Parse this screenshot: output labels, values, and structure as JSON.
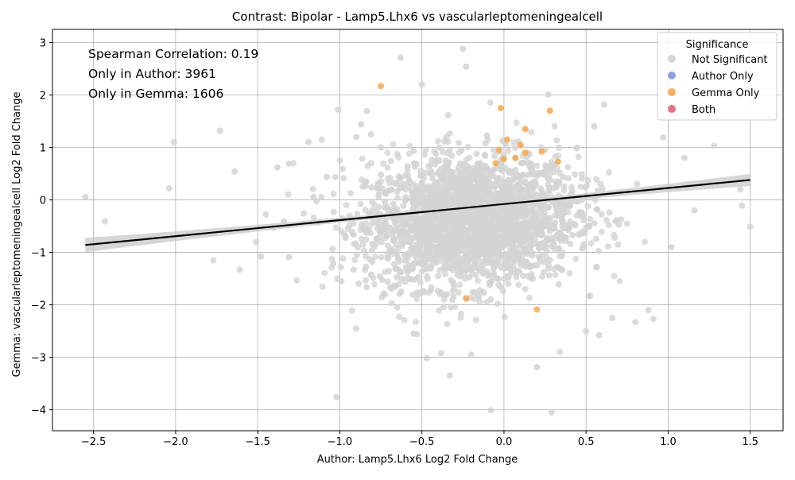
{
  "chart_data": {
    "type": "scatter",
    "title": "Contrast: Bipolar - Lamp5.Lhx6 vs vascularleptomeningealcell",
    "xlabel": "Author: Lamp5.Lhx6 Log2 Fold Change",
    "ylabel": "Gemma: vascularleptomeningealcell Log2 Fold Change",
    "xlim": [
      -2.75,
      1.7
    ],
    "ylim": [
      -4.4,
      3.25
    ],
    "x_ticks": [
      -2.5,
      -2.0,
      -1.5,
      -1.0,
      -0.5,
      0.0,
      0.5,
      1.0,
      1.5
    ],
    "x_tick_labels": [
      "−2.5",
      "−2.0",
      "−1.5",
      "−1.0",
      "−0.5",
      "0.0",
      "0.5",
      "1.0",
      "1.5"
    ],
    "y_ticks": [
      -4,
      -3,
      -2,
      -1,
      0,
      1,
      2,
      3
    ],
    "y_tick_labels": [
      "−4",
      "−3",
      "−2",
      "−1",
      "0",
      "1",
      "2",
      "3"
    ],
    "grid": true,
    "annotations": [
      "Spearman Correlation: 0.19",
      "Only in Author: 3961",
      "Only in Gemma: 1606"
    ],
    "legend": {
      "title": "Significance",
      "position": "top-right",
      "entries": [
        {
          "name": "Not Significant",
          "color": "#d3d3d3"
        },
        {
          "name": "Author Only",
          "color": "#7f97dc"
        },
        {
          "name": "Gemma Only",
          "color": "#f5a94e"
        },
        {
          "name": "Both",
          "color": "#e06377"
        }
      ]
    },
    "regression_line": {
      "x": [
        -2.55,
        1.5
      ],
      "y": [
        -0.86,
        0.38
      ],
      "color": "#000000",
      "band_color": "#c8c8c8"
    },
    "series": [
      {
        "name": "Not Significant",
        "color": "#d3d3d3",
        "points": [
          [
            -2.55,
            0.06
          ],
          [
            -2.43,
            -0.41
          ],
          [
            -2.01,
            1.1
          ],
          [
            -2.04,
            0.22
          ],
          [
            -1.77,
            -1.15
          ],
          [
            -1.73,
            1.32
          ],
          [
            -1.64,
            0.54
          ],
          [
            -1.61,
            -1.33
          ],
          [
            -1.51,
            -0.8
          ],
          [
            -1.48,
            -1.08
          ],
          [
            -1.45,
            -0.28
          ],
          [
            -1.38,
            0.62
          ],
          [
            -1.34,
            -0.41
          ],
          [
            -1.31,
            -1.09
          ],
          [
            -1.31,
            0.69
          ],
          [
            -1.22,
            -0.26
          ],
          [
            -1.19,
            1.1
          ],
          [
            -1.16,
            0.06
          ],
          [
            -1.11,
            1.15
          ],
          [
            -1.08,
            0.44
          ],
          [
            -1.04,
            -1.21
          ],
          [
            -1.02,
            -3.76
          ],
          [
            -1.01,
            1.72
          ],
          [
            -0.99,
            -1.55
          ],
          [
            -0.87,
            1.44
          ],
          [
            -0.81,
            1.25
          ],
          [
            -0.63,
            2.71
          ],
          [
            -0.5,
            2.2
          ],
          [
            -0.25,
            2.88
          ],
          [
            -0.23,
            2.54
          ],
          [
            -0.47,
            -3.02
          ],
          [
            -0.33,
            -3.35
          ],
          [
            -0.08,
            -4.01
          ],
          [
            0.2,
            -3.19
          ],
          [
            0.29,
            -4.05
          ],
          [
            0.34,
            -2.9
          ],
          [
            0.58,
            -2.58
          ],
          [
            0.66,
            -2.25
          ],
          [
            0.8,
            -2.33
          ],
          [
            0.91,
            -2.27
          ],
          [
            1.45,
            -0.11
          ],
          [
            1.5,
            -0.51
          ],
          [
            1.44,
            0.2
          ],
          [
            1.28,
            1.03
          ],
          [
            1.1,
            0.8
          ],
          [
            0.97,
            1.19
          ],
          [
            0.61,
            1.82
          ],
          [
            0.27,
            2.01
          ],
          [
            1.16,
            -0.2
          ],
          [
            1.02,
            -0.9
          ],
          [
            0.88,
            -2.1
          ],
          [
            0.5,
            -2.5
          ],
          [
            -0.2,
            -2.95
          ],
          [
            -0.55,
            -2.55
          ],
          [
            -0.9,
            -2.45
          ],
          [
            -0.9,
            1.2
          ],
          [
            -1.0,
            0.75
          ],
          [
            -0.75,
            1.0
          ],
          [
            -0.65,
            -2.05
          ],
          [
            0.55,
            1.4
          ]
        ]
      },
      {
        "name": "Gemma Only",
        "color": "#f5a94e",
        "points": [
          [
            -0.75,
            2.17
          ],
          [
            -0.02,
            1.75
          ],
          [
            0.28,
            1.7
          ],
          [
            0.13,
            1.35
          ],
          [
            0.1,
            1.05
          ],
          [
            0.13,
            0.9
          ],
          [
            0.02,
            1.15
          ],
          [
            0.33,
            0.73
          ],
          [
            -0.03,
            0.95
          ],
          [
            0.2,
            -2.09
          ],
          [
            -0.23,
            -1.88
          ],
          [
            0.07,
            0.8
          ],
          [
            -0.05,
            0.7
          ],
          [
            0.23,
            0.92
          ],
          [
            0.0,
            0.78
          ]
        ]
      }
    ]
  }
}
